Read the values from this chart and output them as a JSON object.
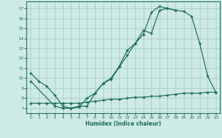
{
  "xlabel": "Humidex (Indice chaleur)",
  "xlim": [
    -0.5,
    23.5
  ],
  "ylim": [
    6.5,
    17.7
  ],
  "yticks": [
    7,
    8,
    9,
    10,
    11,
    12,
    13,
    14,
    15,
    16,
    17
  ],
  "xticks": [
    0,
    1,
    2,
    3,
    4,
    5,
    6,
    7,
    8,
    9,
    10,
    11,
    12,
    13,
    14,
    15,
    16,
    17,
    18,
    19,
    20,
    21,
    22,
    23
  ],
  "bg_color": "#ceeae6",
  "grid_color": "#aacfcb",
  "line_color": "#1a6b5a",
  "line1_x": [
    0,
    1,
    2,
    3,
    4,
    5,
    6,
    7,
    8,
    9,
    10,
    11,
    12,
    13,
    14,
    15,
    16,
    17,
    18,
    19,
    20,
    21,
    22,
    23
  ],
  "line1_y": [
    10.5,
    9.7,
    9.2,
    8.3,
    7.2,
    7.0,
    7.2,
    7.2,
    8.5,
    9.5,
    9.9,
    11.1,
    12.3,
    13.5,
    14.4,
    16.6,
    17.2,
    17.0,
    16.8,
    null,
    null,
    null,
    null,
    null
  ],
  "line2_x": [
    0,
    3,
    4,
    5,
    6,
    7,
    8,
    9,
    10,
    11,
    12,
    13,
    14,
    15,
    16,
    17,
    18,
    19,
    20,
    21,
    22,
    23
  ],
  "line2_y": [
    9.7,
    7.2,
    7.0,
    7.0,
    7.1,
    8.0,
    8.5,
    9.5,
    10.0,
    11.2,
    12.8,
    13.5,
    14.8,
    14.5,
    16.8,
    17.0,
    16.8,
    16.7,
    16.2,
    13.5,
    10.2,
    8.6
  ],
  "line3_x": [
    0,
    1,
    2,
    3,
    4,
    5,
    6,
    7,
    8,
    9,
    10,
    11,
    12,
    13,
    14,
    15,
    16,
    17,
    18,
    19,
    20,
    21,
    22,
    23
  ],
  "line3_y": [
    7.5,
    7.5,
    7.5,
    7.5,
    7.5,
    7.5,
    7.5,
    7.6,
    7.7,
    7.8,
    7.9,
    7.9,
    8.0,
    8.1,
    8.1,
    8.2,
    8.2,
    8.3,
    8.4,
    8.5,
    8.5,
    8.5,
    8.6,
    8.6
  ]
}
